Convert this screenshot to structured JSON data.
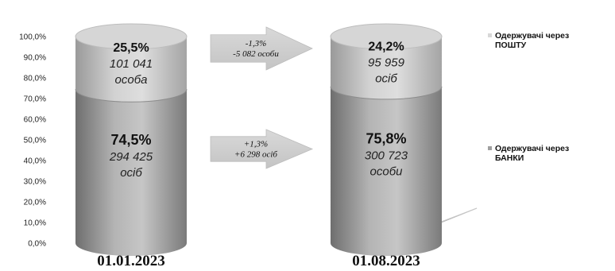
{
  "chart_data": {
    "type": "bar",
    "stacked": true,
    "style": "3d-cylinder",
    "categories": [
      "01.01.2023",
      "01.08.2023"
    ],
    "series": [
      {
        "name": "Одержувачі через БАНКИ",
        "values": [
          74.5,
          75.8
        ],
        "labels": [
          "74,5%",
          "75,8%"
        ],
        "counts": [
          "294 425",
          "300 723"
        ],
        "units": [
          "осіб",
          "особи"
        ],
        "color": "#a8a8a8"
      },
      {
        "name": "Одержувачі через ПОШТУ",
        "values": [
          25.5,
          24.2
        ],
        "labels": [
          "25,5%",
          "24,2%"
        ],
        "counts": [
          "101 041",
          "95 959"
        ],
        "units": [
          "особа",
          "осіб"
        ],
        "color": "#cdcdcd"
      }
    ],
    "ylim": [
      0,
      100
    ],
    "yticks": [
      "0,0%",
      "10,0%",
      "20,0%",
      "30,0%",
      "40,0%",
      "50,0%",
      "60,0%",
      "70,0%",
      "80,0%",
      "90,0%",
      "100,0%"
    ],
    "grid": false,
    "legend_position": "right",
    "legend": [
      {
        "lines": [
          "Одержувачі через",
          "ПОШТУ"
        ],
        "color": "#d8d8d8"
      },
      {
        "lines": [
          "Одержувачі через",
          "БАНКИ"
        ],
        "color": "#a0a0a0"
      }
    ],
    "annotations": [
      {
        "between": "top",
        "lines": [
          "-1,3%",
          "-5  082 особи"
        ]
      },
      {
        "between": "bottom",
        "lines": [
          "+1,3%",
          "+6 298 осіб"
        ]
      }
    ]
  }
}
